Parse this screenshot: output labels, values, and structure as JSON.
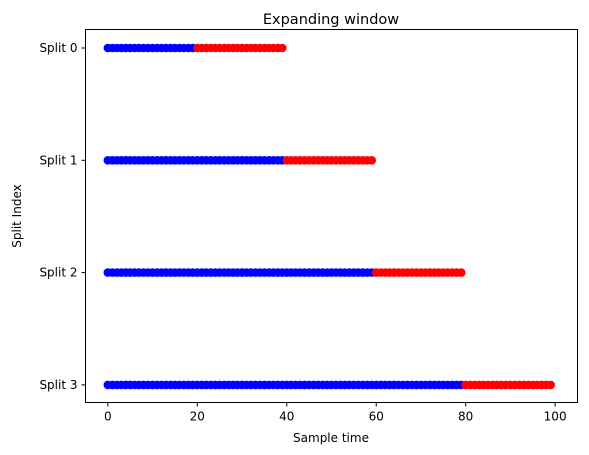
{
  "chart_data": {
    "type": "scatter",
    "title": "Expanding window",
    "xlabel": "Sample time",
    "ylabel": "Split Index",
    "xlim": [
      -5,
      105
    ],
    "x_ticks": [
      0,
      20,
      40,
      60,
      80,
      100
    ],
    "y_categories": [
      "Split 0",
      "Split 1",
      "Split 2",
      "Split 3"
    ],
    "grid": false,
    "colors": {
      "train": "#0000ff",
      "test": "#ff0000"
    },
    "splits": [
      {
        "label": "Split 0",
        "train": [
          0,
          19
        ],
        "test": [
          20,
          39
        ]
      },
      {
        "label": "Split 1",
        "train": [
          0,
          39
        ],
        "test": [
          40,
          59
        ]
      },
      {
        "label": "Split 2",
        "train": [
          0,
          59
        ],
        "test": [
          60,
          79
        ]
      },
      {
        "label": "Split 3",
        "train": [
          0,
          79
        ],
        "test": [
          80,
          99
        ]
      }
    ]
  }
}
